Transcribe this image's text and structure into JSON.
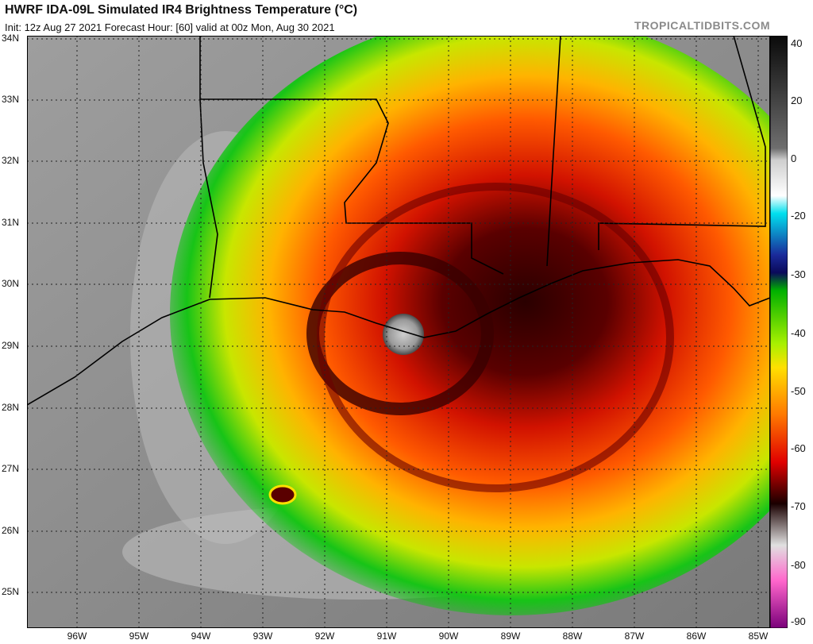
{
  "header": {
    "title": "HWRF IDA-09L Simulated IR4 Brightness Temperature (°C)",
    "subtitle": "Init: 12z Aug 27 2021   Forecast Hour: [60]   valid at 00z Mon, Aug 30 2021",
    "brand": "TROPICALTIDBITS.COM"
  },
  "axes": {
    "lat_labels": [
      "34N",
      "33N",
      "32N",
      "31N",
      "30N",
      "29N",
      "28N",
      "27N",
      "26N",
      "25N"
    ],
    "lon_labels": [
      "96W",
      "95W",
      "94W",
      "93W",
      "92W",
      "91W",
      "90W",
      "89W",
      "88W",
      "87W",
      "86W",
      "85W"
    ]
  },
  "colorbar": {
    "labels": [
      "40",
      "20",
      "0",
      "-20",
      "-30",
      "-40",
      "-50",
      "-60",
      "-70",
      "-80",
      "-90"
    ],
    "stops": [
      {
        "value": 40,
        "color": "#111111"
      },
      {
        "value": 0,
        "color": "#d9d9d9"
      },
      {
        "value": -20,
        "color": "#ffffff"
      },
      {
        "value": -21,
        "color": "#00d8e8"
      },
      {
        "value": -30,
        "color": "#1a1a8a"
      },
      {
        "value": -40,
        "color": "#00c800"
      },
      {
        "value": -50,
        "color": "#ffe000"
      },
      {
        "value": -60,
        "color": "#ff2a00"
      },
      {
        "value": -70,
        "color": "#1a0000"
      },
      {
        "value": -80,
        "color": "#bfbfbf"
      },
      {
        "value": -85,
        "color": "#ff66cc"
      },
      {
        "value": -90,
        "color": "#8a008a"
      }
    ]
  },
  "map": {
    "storm_name": "IDA-09L",
    "projection": "lat-lon"
  }
}
